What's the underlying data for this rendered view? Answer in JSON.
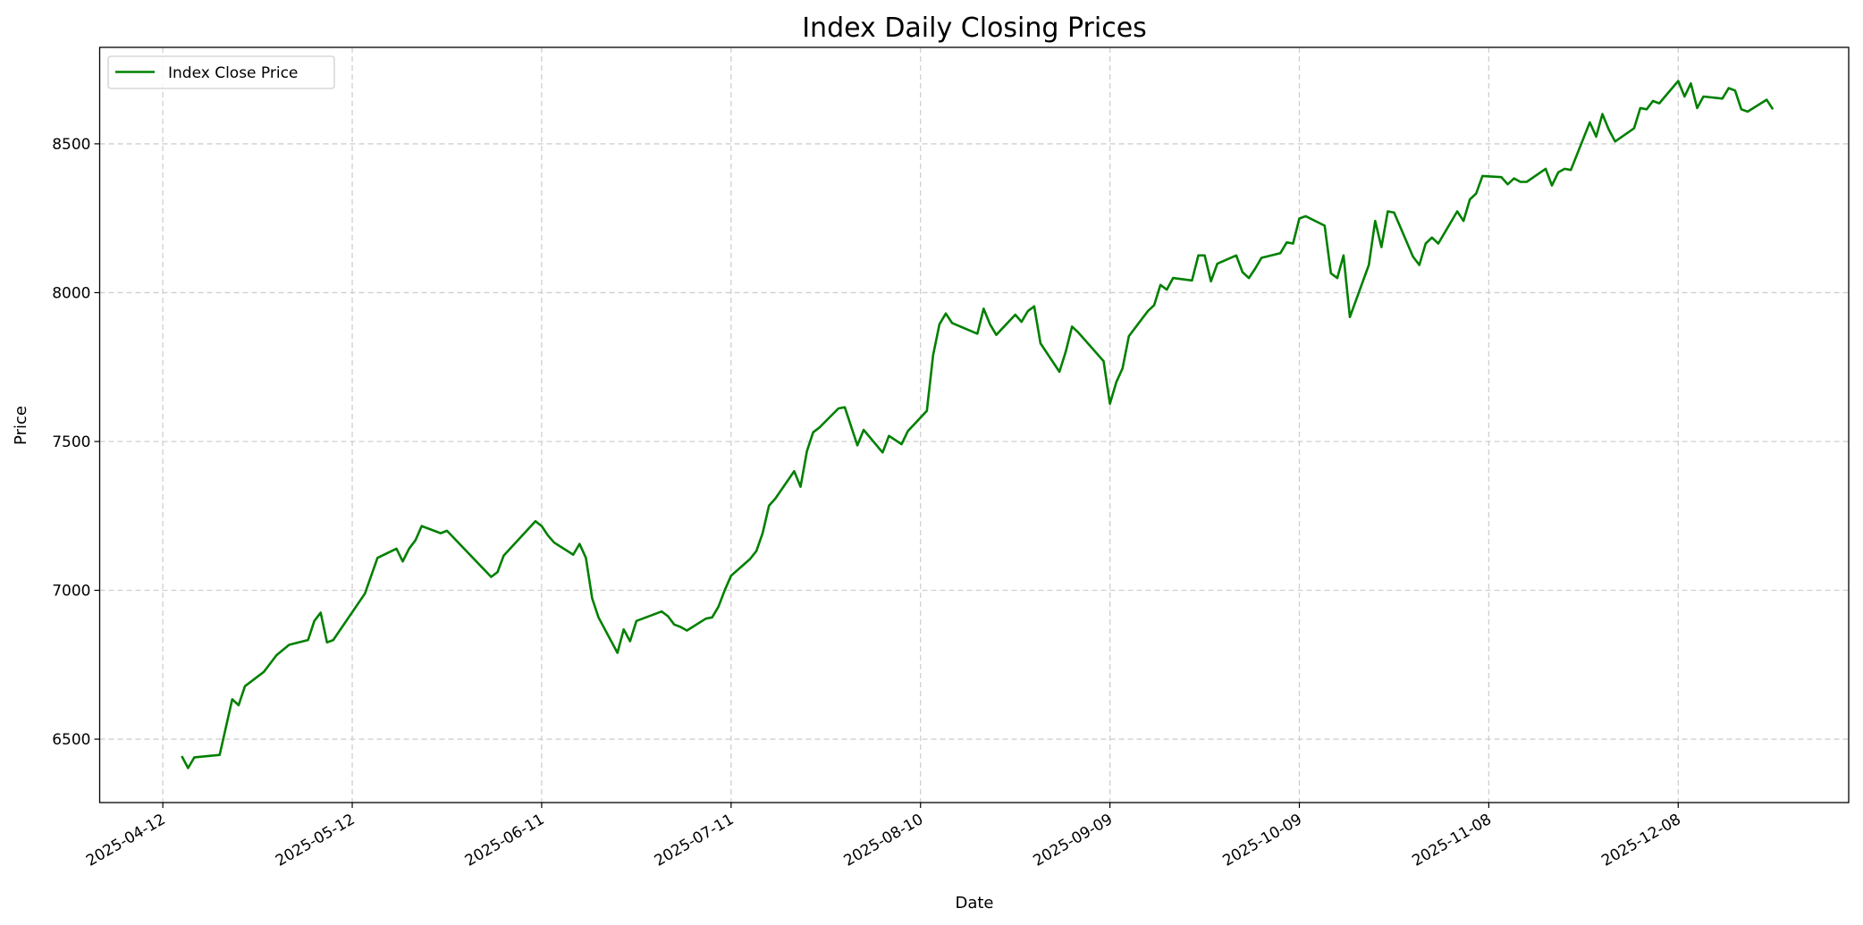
{
  "chart_data": {
    "type": "line",
    "title": "Index Daily Closing Prices",
    "xlabel": "Date",
    "ylabel": "Price",
    "xlim": [
      "2025-04-02",
      "2026-01-04"
    ],
    "ylim": [
      6287,
      8824
    ],
    "grid": true,
    "legend_placement": "top-left",
    "x_ticks": [
      "2025-04-12",
      "2025-05-12",
      "2025-06-11",
      "2025-07-11",
      "2025-08-10",
      "2025-09-09",
      "2025-10-09",
      "2025-11-08",
      "2025-12-08"
    ],
    "y_ticks": [
      6500,
      7000,
      7500,
      8000,
      8500
    ],
    "series": [
      {
        "name": "Index Close Price",
        "color": "#008000",
        "points": [
          [
            "2025-04-15",
            6443
          ],
          [
            "2025-04-16",
            6403
          ],
          [
            "2025-04-17",
            6439
          ],
          [
            "2025-04-21",
            6447
          ],
          [
            "2025-04-23",
            6634
          ],
          [
            "2025-04-24",
            6614
          ],
          [
            "2025-04-25",
            6678
          ],
          [
            "2025-04-28",
            6726
          ],
          [
            "2025-04-29",
            6754
          ],
          [
            "2025-04-30",
            6782
          ],
          [
            "2025-05-02",
            6817
          ],
          [
            "2025-05-05",
            6833
          ],
          [
            "2025-05-06",
            6897
          ],
          [
            "2025-05-07",
            6925
          ],
          [
            "2025-05-08",
            6825
          ],
          [
            "2025-05-09",
            6833
          ],
          [
            "2025-05-14",
            6989
          ],
          [
            "2025-05-16",
            7109
          ],
          [
            "2025-05-19",
            7140
          ],
          [
            "2025-05-20",
            7097
          ],
          [
            "2025-05-21",
            7140
          ],
          [
            "2025-05-22",
            7168
          ],
          [
            "2025-05-23",
            7216
          ],
          [
            "2025-05-26",
            7192
          ],
          [
            "2025-05-27",
            7200
          ],
          [
            "2025-06-03",
            7045
          ],
          [
            "2025-06-04",
            7061
          ],
          [
            "2025-06-05",
            7117
          ],
          [
            "2025-06-10",
            7232
          ],
          [
            "2025-06-11",
            7216
          ],
          [
            "2025-06-12",
            7184
          ],
          [
            "2025-06-13",
            7160
          ],
          [
            "2025-06-16",
            7120
          ],
          [
            "2025-06-17",
            7156
          ],
          [
            "2025-06-18",
            7109
          ],
          [
            "2025-06-19",
            6973
          ],
          [
            "2025-06-20",
            6909
          ],
          [
            "2025-06-23",
            6790
          ],
          [
            "2025-06-24",
            6869
          ],
          [
            "2025-06-25",
            6829
          ],
          [
            "2025-06-26",
            6897
          ],
          [
            "2025-06-30",
            6929
          ],
          [
            "2025-07-01",
            6913
          ],
          [
            "2025-07-02",
            6885
          ],
          [
            "2025-07-03",
            6877
          ],
          [
            "2025-07-04",
            6865
          ],
          [
            "2025-07-07",
            6905
          ],
          [
            "2025-07-08",
            6909
          ],
          [
            "2025-07-09",
            6945
          ],
          [
            "2025-07-10",
            7001
          ],
          [
            "2025-07-11",
            7049
          ],
          [
            "2025-07-14",
            7105
          ],
          [
            "2025-07-15",
            7132
          ],
          [
            "2025-07-16",
            7192
          ],
          [
            "2025-07-17",
            7284
          ],
          [
            "2025-07-18",
            7308
          ],
          [
            "2025-07-21",
            7400
          ],
          [
            "2025-07-22",
            7348
          ],
          [
            "2025-07-23",
            7467
          ],
          [
            "2025-07-24",
            7531
          ],
          [
            "2025-07-25",
            7547
          ],
          [
            "2025-07-28",
            7611
          ],
          [
            "2025-07-29",
            7615
          ],
          [
            "2025-07-31",
            7487
          ],
          [
            "2025-08-01",
            7539
          ],
          [
            "2025-08-04",
            7463
          ],
          [
            "2025-08-05",
            7519
          ],
          [
            "2025-08-07",
            7491
          ],
          [
            "2025-08-08",
            7535
          ],
          [
            "2025-08-11",
            7603
          ],
          [
            "2025-08-12",
            7790
          ],
          [
            "2025-08-13",
            7894
          ],
          [
            "2025-08-14",
            7930
          ],
          [
            "2025-08-15",
            7898
          ],
          [
            "2025-08-19",
            7862
          ],
          [
            "2025-08-20",
            7946
          ],
          [
            "2025-08-21",
            7894
          ],
          [
            "2025-08-22",
            7858
          ],
          [
            "2025-08-25",
            7926
          ],
          [
            "2025-08-26",
            7902
          ],
          [
            "2025-08-27",
            7938
          ],
          [
            "2025-08-28",
            7954
          ],
          [
            "2025-08-29",
            7830
          ],
          [
            "2025-09-01",
            7734
          ],
          [
            "2025-09-02",
            7802
          ],
          [
            "2025-09-03",
            7886
          ],
          [
            "2025-09-04",
            7866
          ],
          [
            "2025-09-08",
            7770
          ],
          [
            "2025-09-09",
            7627
          ],
          [
            "2025-09-10",
            7699
          ],
          [
            "2025-09-11",
            7746
          ],
          [
            "2025-09-12",
            7854
          ],
          [
            "2025-09-15",
            7938
          ],
          [
            "2025-09-16",
            7958
          ],
          [
            "2025-09-17",
            8026
          ],
          [
            "2025-09-18",
            8010
          ],
          [
            "2025-09-19",
            8049
          ],
          [
            "2025-09-22",
            8041
          ],
          [
            "2025-09-23",
            8125
          ],
          [
            "2025-09-24",
            8125
          ],
          [
            "2025-09-25",
            8038
          ],
          [
            "2025-09-26",
            8097
          ],
          [
            "2025-09-29",
            8125
          ],
          [
            "2025-09-30",
            8069
          ],
          [
            "2025-10-01",
            8049
          ],
          [
            "2025-10-02",
            8081
          ],
          [
            "2025-10-03",
            8117
          ],
          [
            "2025-10-06",
            8133
          ],
          [
            "2025-10-07",
            8169
          ],
          [
            "2025-10-08",
            8165
          ],
          [
            "2025-10-09",
            8249
          ],
          [
            "2025-10-10",
            8257
          ],
          [
            "2025-10-13",
            8225
          ],
          [
            "2025-10-14",
            8065
          ],
          [
            "2025-10-15",
            8049
          ],
          [
            "2025-10-16",
            8125
          ],
          [
            "2025-10-17",
            7918
          ],
          [
            "2025-10-20",
            8093
          ],
          [
            "2025-10-21",
            8241
          ],
          [
            "2025-10-22",
            8153
          ],
          [
            "2025-10-23",
            8273
          ],
          [
            "2025-10-24",
            8269
          ],
          [
            "2025-10-27",
            8121
          ],
          [
            "2025-10-28",
            8093
          ],
          [
            "2025-10-29",
            8165
          ],
          [
            "2025-10-30",
            8185
          ],
          [
            "2025-10-31",
            8165
          ],
          [
            "2025-11-03",
            8273
          ],
          [
            "2025-11-04",
            8241
          ],
          [
            "2025-11-05",
            8313
          ],
          [
            "2025-11-06",
            8333
          ],
          [
            "2025-11-07",
            8392
          ],
          [
            "2025-11-10",
            8388
          ],
          [
            "2025-11-11",
            8364
          ],
          [
            "2025-11-12",
            8384
          ],
          [
            "2025-11-13",
            8372
          ],
          [
            "2025-11-14",
            8372
          ],
          [
            "2025-11-17",
            8416
          ],
          [
            "2025-11-18",
            8360
          ],
          [
            "2025-11-19",
            8404
          ],
          [
            "2025-11-20",
            8416
          ],
          [
            "2025-11-21",
            8412
          ],
          [
            "2025-11-24",
            8572
          ],
          [
            "2025-11-25",
            8524
          ],
          [
            "2025-11-26",
            8600
          ],
          [
            "2025-11-27",
            8548
          ],
          [
            "2025-11-28",
            8508
          ],
          [
            "2025-12-01",
            8552
          ],
          [
            "2025-12-02",
            8620
          ],
          [
            "2025-12-03",
            8616
          ],
          [
            "2025-12-04",
            8644
          ],
          [
            "2025-12-05",
            8636
          ],
          [
            "2025-12-08",
            8711
          ],
          [
            "2025-12-09",
            8659
          ],
          [
            "2025-12-10",
            8703
          ],
          [
            "2025-12-11",
            8620
          ],
          [
            "2025-12-12",
            8659
          ],
          [
            "2025-12-15",
            8652
          ],
          [
            "2025-12-16",
            8687
          ],
          [
            "2025-12-17",
            8679
          ],
          [
            "2025-12-18",
            8616
          ],
          [
            "2025-12-19",
            8608
          ],
          [
            "2025-12-22",
            8648
          ],
          [
            "2025-12-23",
            8616
          ]
        ]
      }
    ]
  }
}
